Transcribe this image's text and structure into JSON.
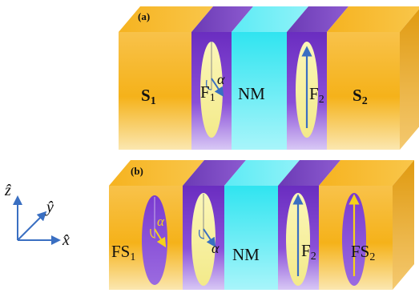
{
  "panel_a": {
    "label": "(a)",
    "layers": {
      "s1": "S",
      "s1_sub": "1",
      "f1": "F",
      "f1_sub": "1",
      "nm": "NM",
      "f2": "F",
      "f2_sub": "2",
      "s2": "S",
      "s2_sub": "2"
    },
    "angle_label": "α"
  },
  "panel_b": {
    "label": "(b)",
    "layers": {
      "fs1": "FS",
      "fs1_sub": "1",
      "nm": "NM",
      "f2": "F",
      "f2_sub": "2",
      "fs2": "FS",
      "fs2_sub": "2"
    },
    "angle_label_fs1": "α",
    "angle_label_f1": "α"
  },
  "axes": {
    "z": "ẑ",
    "y": "ŷ",
    "x": "x̂"
  },
  "colors": {
    "superconductor": "#F5B21A",
    "ferromagnet": "#7B3FC4",
    "normal_metal": "#3EE6F0",
    "ellipse": "#F8F2A0",
    "arrow_blue": "#3A6FC2",
    "arrow_yellow": "#F5D21A"
  }
}
